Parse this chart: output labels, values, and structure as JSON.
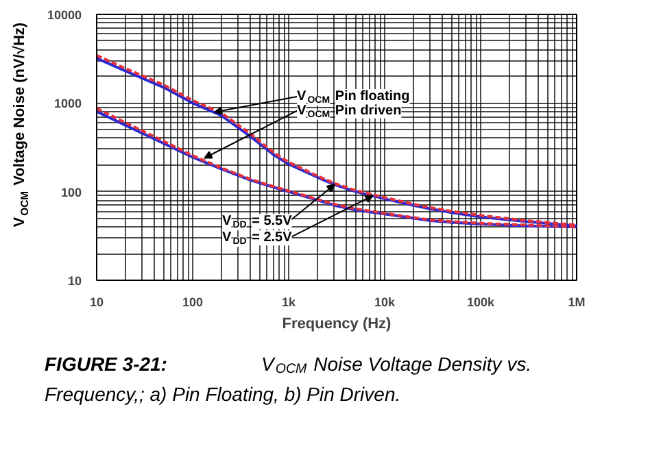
{
  "chart_data": {
    "type": "line",
    "title": "FIGURE 3-21:",
    "subtitle": "V$_{OCM}$ Noise Voltage Density vs. Frequency,; a) Pin Floating, b) Pin Driven.",
    "xlabel": "Frequency (Hz)",
    "ylabel": "V$_{OCM}$ Voltage Noise (nV/√Hz)",
    "log": "xy",
    "grid": true,
    "marker": "none",
    "xlim": [
      10,
      1000000
    ],
    "ylim": [
      10,
      10000
    ],
    "xticks": [
      {
        "value": 10,
        "label": "10"
      },
      {
        "value": 100,
        "label": "100"
      },
      {
        "value": 1000,
        "label": "1k"
      },
      {
        "value": 10000,
        "label": "10k"
      },
      {
        "value": 100000,
        "label": "100k"
      },
      {
        "value": 1000000,
        "label": "1M"
      }
    ],
    "yticks": [
      10,
      100,
      1000,
      10000
    ],
    "x": [
      10,
      20,
      50,
      100,
      200,
      400,
      700,
      1000,
      2000,
      3000,
      5000,
      10000,
      20000,
      30000,
      50000,
      100000,
      300000,
      1000000
    ],
    "series": [
      {
        "color": "#2a2ad0",
        "line_style": "solid",
        "values": [
          3200,
          2300,
          1500,
          1000,
          720,
          420,
          260,
          205,
          145,
          120,
          100,
          83,
          70,
          64,
          58,
          52,
          46,
          41
        ]
      },
      {
        "color": "#e8303a",
        "line_style": "dashed",
        "values": [
          3450,
          2450,
          1600,
          1070,
          770,
          450,
          275,
          215,
          150,
          124,
          103,
          86,
          72,
          66,
          60,
          54,
          47,
          42
        ]
      },
      {
        "color": "#2a2ad0",
        "line_style": "solid",
        "values": [
          800,
          560,
          350,
          245,
          180,
          135,
          112,
          100,
          80,
          70,
          62,
          56,
          50,
          47,
          45,
          43,
          41,
          40
        ]
      },
      {
        "color": "#e8303a",
        "line_style": "dashed",
        "values": [
          870,
          600,
          370,
          255,
          185,
          138,
          114,
          102,
          82,
          72,
          64,
          57,
          51,
          48,
          46,
          44,
          42,
          40
        ]
      }
    ],
    "annotations": [
      {
        "text": "V$_{OCM}$ Pin floating",
        "x": 170,
        "y": 790
      },
      {
        "text": "V$_{OCM}$ Pin driven",
        "x": 133,
        "y": 240
      },
      {
        "text": "V$_{DD}$ = 5.5V",
        "x": 3000,
        "y": 120
      },
      {
        "text": "V$_{DD}$ = 2.5V",
        "x": 7500,
        "y": 90
      }
    ]
  }
}
